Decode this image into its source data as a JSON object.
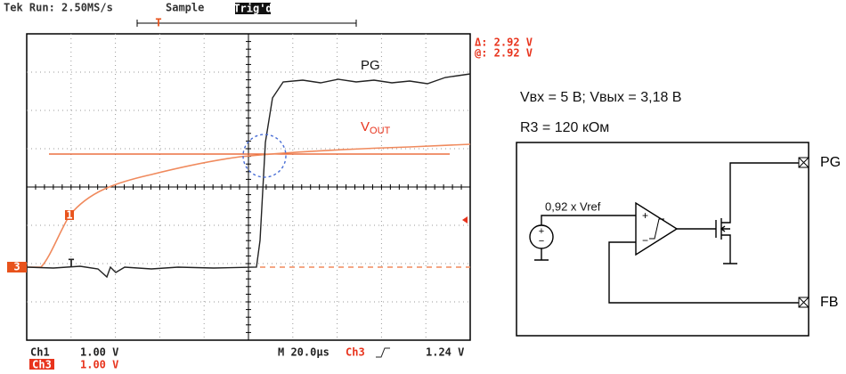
{
  "scope": {
    "header": {
      "run": "Tek Run: 2.50MS/s",
      "mode": "Sample",
      "trigger": "Trig'd",
      "trigger_marker": "T"
    },
    "cursor": {
      "delta": "Δ: 2.92 V",
      "at": "@: 2.92 V"
    },
    "labels": {
      "pg": "PG",
      "vout": "V",
      "vout_sub": "OUT"
    },
    "markers": {
      "ch3": "3",
      "ch1": "1",
      "trigger": "T"
    },
    "footer": {
      "ch1": "Ch1",
      "ch1_scale": "1.00 V",
      "time": "M 20.0µs",
      "trig_source": "Ch3",
      "trig_level": "1.24 V",
      "ch3": "Ch3",
      "ch3_scale": "1.00 V"
    }
  },
  "schematic": {
    "conditions": "Vвх = 5 В; Vвых = 3,18 В",
    "resistor": "R3 = 120 кОм",
    "reference": "0,92 x Vref",
    "pin_pg": "PG",
    "pin_fb": "FB",
    "plus": "+",
    "minus": "−"
  }
}
